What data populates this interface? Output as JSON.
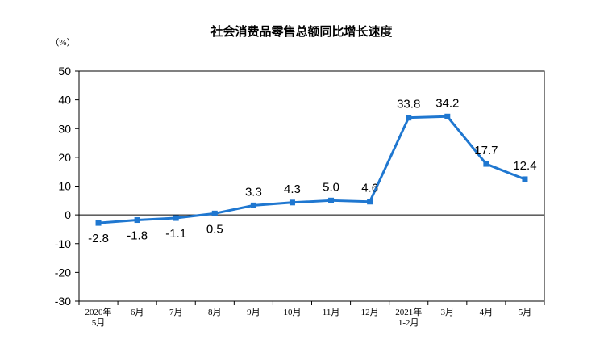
{
  "chart_data": {
    "type": "line",
    "title": "社会消费品零售总额同比增长速度",
    "unit_label": "（%）",
    "ylim": [
      -30,
      50
    ],
    "yticks": [
      50,
      40,
      30,
      20,
      10,
      0,
      -10,
      -20,
      -30
    ],
    "categories": [
      "2020年\n5月",
      "6月",
      "7月",
      "8月",
      "9月",
      "10月",
      "11月",
      "12月",
      "2021年\n1-2月",
      "3月",
      "4月",
      "5月"
    ],
    "values": [
      -2.8,
      -1.8,
      -1.1,
      0.5,
      3.3,
      4.3,
      5.0,
      4.6,
      33.8,
      34.2,
      17.7,
      12.4
    ],
    "value_labels": [
      "-2.8",
      "-1.8",
      "-1.1",
      "0.5",
      "3.3",
      "4.3",
      "5.0",
      "4.6",
      "33.8",
      "34.2",
      "17.7",
      "12.4"
    ],
    "label_position": [
      "below",
      "below",
      "below",
      "below",
      "above",
      "above",
      "above",
      "above",
      "above",
      "above",
      "above",
      "above"
    ],
    "line_color": "#1f77d0",
    "grid": false,
    "legend": "none"
  }
}
